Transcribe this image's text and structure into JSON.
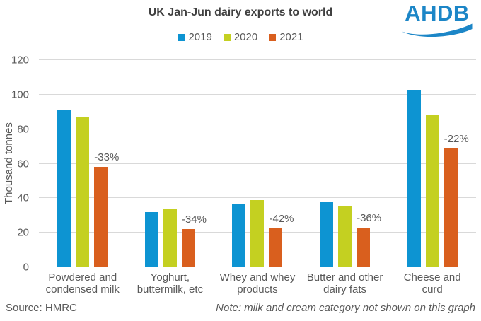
{
  "footer": {
    "source": "Source: HMRC",
    "note": "Note: milk and cream category not shown on this graph"
  },
  "logo": {
    "text": "AHDB",
    "color": "#1c86c7"
  },
  "chart_data": {
    "type": "bar",
    "title": "UK Jan-Jun dairy exports to world",
    "xlabel": "",
    "ylabel": "Thousand tonnes",
    "ylim": [
      0,
      120
    ],
    "y_tick_step": 20,
    "grid": true,
    "legend_position": "top",
    "categories": [
      "Powdered and\ncondensed milk",
      "Yoghurt,\nbuttermilk, etc",
      "Whey and whey\nproducts",
      "Butter and other\ndairy fats",
      "Cheese and\ncurd"
    ],
    "series": [
      {
        "name": "2019",
        "color": "#0d94d2",
        "values": [
          91.5,
          32,
          37,
          38,
          103
        ]
      },
      {
        "name": "2020",
        "color": "#c4d021",
        "values": [
          87,
          34,
          39,
          35.5,
          88
        ]
      },
      {
        "name": "2021",
        "color": "#d95f1e",
        "values": [
          58,
          22,
          22.5,
          23,
          69
        ]
      }
    ],
    "annotations": [
      "-33%",
      "-34%",
      "-42%",
      "-36%",
      "-22%"
    ],
    "annotation_series": "2021",
    "text_color": "#595959",
    "title_color": "#404040",
    "gridline_color": "#d9d9d9",
    "axisline_color": "#bfbfbf"
  }
}
